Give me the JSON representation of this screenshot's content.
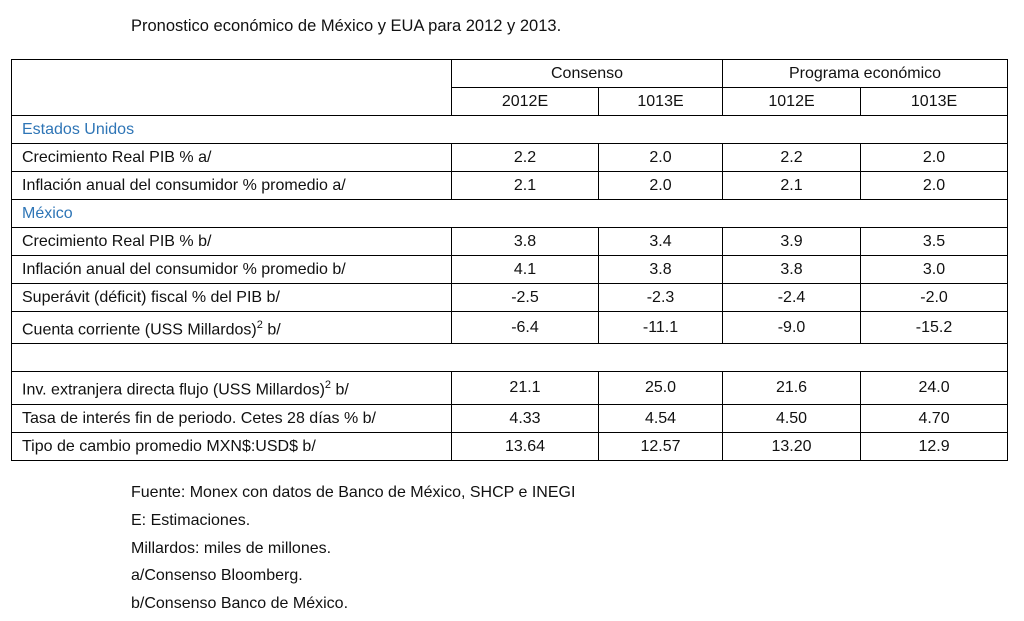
{
  "title": "Pronostico económico de México y EUA para 2012 y 2013.",
  "table": {
    "group_headers": [
      "Consenso",
      "Programa económico"
    ],
    "column_headers": [
      "2012E",
      "1013E",
      "1012E",
      "1013E"
    ],
    "sections": [
      {
        "name": "Estados Unidos",
        "rows": [
          {
            "label": "Crecimiento Real PIB % a/",
            "values": [
              "2.2",
              "2.0",
              "2.2",
              "2.0"
            ]
          },
          {
            "label": "Inflación anual del consumidor % promedio a/",
            "values": [
              "2.1",
              "2.0",
              "2.1",
              "2.0"
            ]
          }
        ]
      },
      {
        "name": "México",
        "rows": [
          {
            "label": "Crecimiento Real PIB % b/",
            "values": [
              "3.8",
              "3.4",
              "3.9",
              "3.5"
            ]
          },
          {
            "label": "Inflación anual del consumidor % promedio b/",
            "values": [
              "4.1",
              "3.8",
              "3.8",
              "3.0"
            ]
          },
          {
            "label": "Superávit (déficit) fiscal % del PIB b/",
            "values": [
              "-2.5",
              "-2.3",
              "-2.4",
              "-2.0"
            ]
          },
          {
            "label": "Cuenta corriente (USS Millardos)",
            "sup": "2",
            "suffix": " b/",
            "values": [
              "-6.4",
              "-11.1",
              "-9.0",
              "-15.2"
            ]
          }
        ]
      },
      {
        "rows": [
          {
            "label": "Inv. extranjera directa flujo (USS Millardos)",
            "sup": "2",
            "suffix": " b/",
            "values": [
              "21.1",
              "25.0",
              "21.6",
              "24.0"
            ]
          },
          {
            "label": "Tasa de interés fin de periodo. Cetes 28 días % b/",
            "values": [
              "4.33",
              "4.54",
              "4.50",
              "4.70"
            ]
          },
          {
            "label": "Tipo de cambio promedio MXN$:USD$ b/",
            "values": [
              "13.64",
              "12.57",
              "13.20",
              "12.9"
            ]
          }
        ]
      }
    ]
  },
  "footnotes": [
    "Fuente: Monex con datos de Banco de México, SHCP e INEGI",
    "E: Estimaciones.",
    "Millardos: miles de millones.",
    "a/Consenso Bloomberg.",
    "b/Consenso Banco de México."
  ]
}
